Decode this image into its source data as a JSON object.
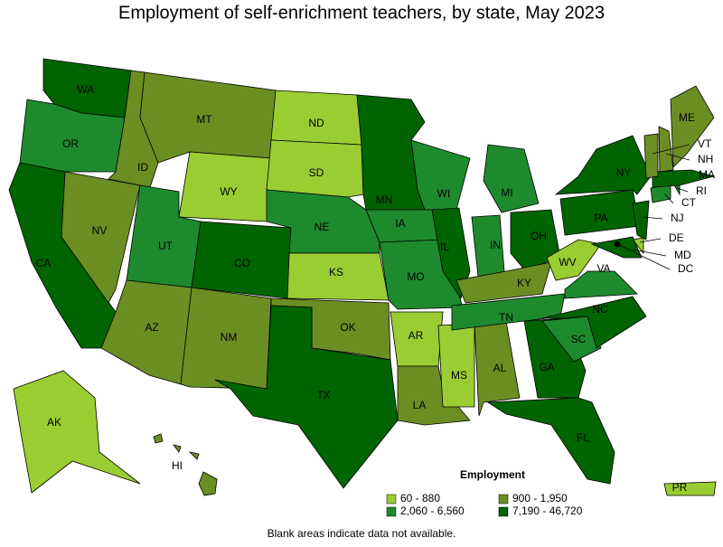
{
  "title": "Employment of self-enrichment teachers, by state, May 2023",
  "legend": {
    "title": "Employment",
    "items": [
      {
        "label": "60 - 880",
        "color": "#9acd32"
      },
      {
        "label": "900 - 1,950",
        "color": "#6b8e23"
      },
      {
        "label": "2,060 - 6,560",
        "color": "#1e8a2e"
      },
      {
        "label": "7,190 - 46,720",
        "color": "#006400"
      }
    ]
  },
  "footnote": "Blank areas indicate data not available.",
  "states": [
    {
      "abbr": "WA",
      "color": "#006400"
    },
    {
      "abbr": "OR",
      "color": "#1e8a2e"
    },
    {
      "abbr": "CA",
      "color": "#006400"
    },
    {
      "abbr": "NV",
      "color": "#6b8e23"
    },
    {
      "abbr": "ID",
      "color": "#6b8e23"
    },
    {
      "abbr": "MT",
      "color": "#6b8e23"
    },
    {
      "abbr": "WY",
      "color": "#9acd32"
    },
    {
      "abbr": "UT",
      "color": "#1e8a2e"
    },
    {
      "abbr": "CO",
      "color": "#006400"
    },
    {
      "abbr": "AZ",
      "color": "#6b8e23"
    },
    {
      "abbr": "NM",
      "color": "#6b8e23"
    },
    {
      "abbr": "ND",
      "color": "#9acd32"
    },
    {
      "abbr": "SD",
      "color": "#9acd32"
    },
    {
      "abbr": "NE",
      "color": "#1e8a2e"
    },
    {
      "abbr": "KS",
      "color": "#9acd32"
    },
    {
      "abbr": "OK",
      "color": "#6b8e23"
    },
    {
      "abbr": "TX",
      "color": "#006400"
    },
    {
      "abbr": "MN",
      "color": "#006400"
    },
    {
      "abbr": "IA",
      "color": "#1e8a2e"
    },
    {
      "abbr": "MO",
      "color": "#1e8a2e"
    },
    {
      "abbr": "AR",
      "color": "#9acd32"
    },
    {
      "abbr": "LA",
      "color": "#6b8e23"
    },
    {
      "abbr": "MS",
      "color": "#9acd32"
    },
    {
      "abbr": "AL",
      "color": "#6b8e23"
    },
    {
      "abbr": "WI",
      "color": "#1e8a2e"
    },
    {
      "abbr": "IL",
      "color": "#006400"
    },
    {
      "abbr": "IN",
      "color": "#1e8a2e"
    },
    {
      "abbr": "MI",
      "color": "#1e8a2e"
    },
    {
      "abbr": "OH",
      "color": "#006400"
    },
    {
      "abbr": "KY",
      "color": "#6b8e23"
    },
    {
      "abbr": "TN",
      "color": "#1e8a2e"
    },
    {
      "abbr": "GA",
      "color": "#006400"
    },
    {
      "abbr": "FL",
      "color": "#006400"
    },
    {
      "abbr": "SC",
      "color": "#1e8a2e"
    },
    {
      "abbr": "NC",
      "color": "#006400"
    },
    {
      "abbr": "VA",
      "color": "#1e8a2e"
    },
    {
      "abbr": "WV",
      "color": "#9acd32"
    },
    {
      "abbr": "PA",
      "color": "#006400"
    },
    {
      "abbr": "NY",
      "color": "#006400"
    },
    {
      "abbr": "NJ",
      "color": "#006400"
    },
    {
      "abbr": "DE",
      "color": "#9acd32"
    },
    {
      "abbr": "MD",
      "color": "#006400"
    },
    {
      "abbr": "DC",
      "color": "#000000"
    },
    {
      "abbr": "CT",
      "color": "#1e8a2e"
    },
    {
      "abbr": "RI",
      "color": "#1e8a2e"
    },
    {
      "abbr": "MA",
      "color": "#006400"
    },
    {
      "abbr": "VT",
      "color": "#6b8e23"
    },
    {
      "abbr": "NH",
      "color": "#6b8e23"
    },
    {
      "abbr": "ME",
      "color": "#6b8e23"
    },
    {
      "abbr": "AK",
      "color": "#9acd32"
    },
    {
      "abbr": "HI",
      "color": "#6b8e23"
    },
    {
      "abbr": "PR",
      "color": "#9acd32"
    }
  ]
}
